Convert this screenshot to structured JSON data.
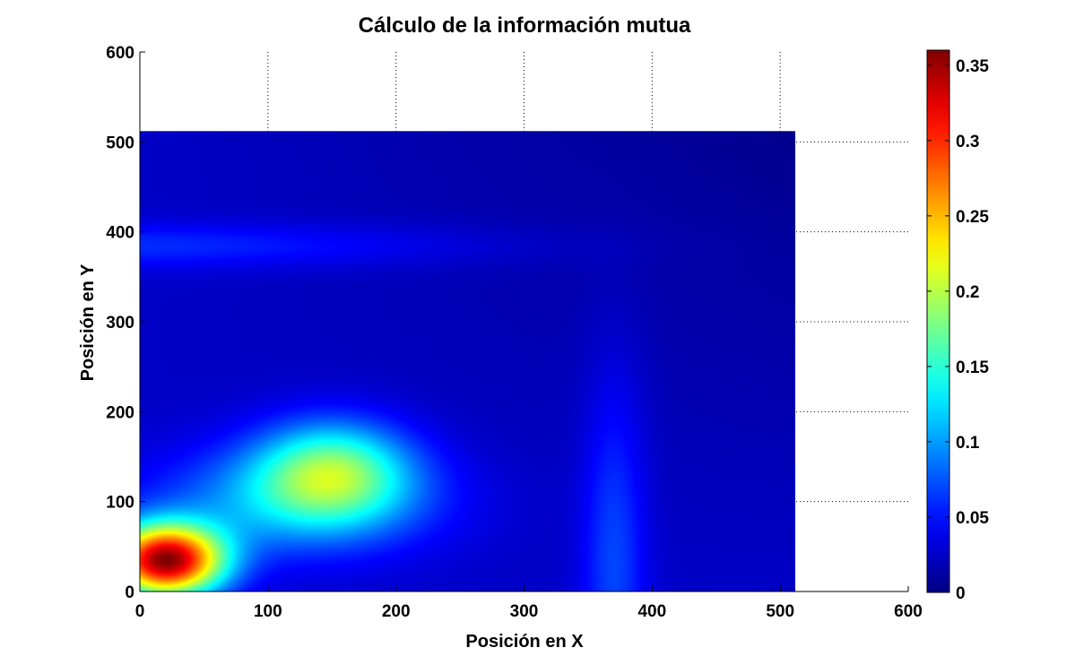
{
  "chart_data": {
    "type": "heatmap",
    "title": "Cálculo de la información mutua",
    "xlabel": "Posición en X",
    "ylabel": "Posición en Y",
    "xlim": [
      0,
      600
    ],
    "ylim": [
      0,
      600
    ],
    "xticks": [
      "0",
      "100",
      "200",
      "300",
      "400",
      "500",
      "600"
    ],
    "yticks": [
      "0",
      "100",
      "200",
      "300",
      "400",
      "500",
      "600"
    ],
    "data_extent": {
      "x": [
        0,
        512
      ],
      "y": [
        0,
        512
      ]
    },
    "grid": "dotted",
    "colormap": "jet",
    "colorbar": {
      "range": [
        0,
        0.36
      ],
      "ticks": [
        "0",
        "0.05",
        "0.1",
        "0.15",
        "0.2",
        "0.25",
        "0.3",
        "0.35"
      ]
    },
    "features": [
      {
        "kind": "peak",
        "x": 20,
        "y": 35,
        "value": 0.35,
        "sx": 45,
        "sy": 40
      },
      {
        "kind": "hill",
        "x": 150,
        "y": 135,
        "value": 0.16,
        "sx": 60,
        "sy": 55
      },
      {
        "kind": "ridge",
        "x": 120,
        "y": 100,
        "value": 0.1,
        "sx": 110,
        "sy": 60
      },
      {
        "kind": "band",
        "x": 0,
        "y": 385,
        "value": 0.06,
        "sx": 260,
        "sy": 25
      },
      {
        "kind": "band",
        "x": 370,
        "y": 40,
        "value": 0.07,
        "sx": 25,
        "sy": 200
      }
    ],
    "background_value": 0.025
  }
}
